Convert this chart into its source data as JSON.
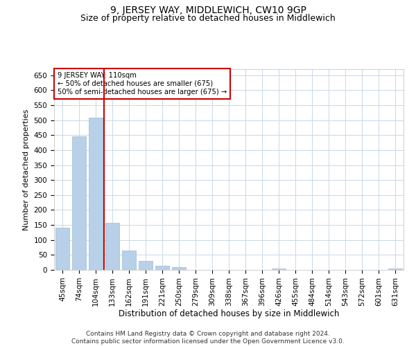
{
  "title": "9, JERSEY WAY, MIDDLEWICH, CW10 9GP",
  "subtitle": "Size of property relative to detached houses in Middlewich",
  "xlabel": "Distribution of detached houses by size in Middlewich",
  "ylabel": "Number of detached properties",
  "categories": [
    "45sqm",
    "74sqm",
    "104sqm",
    "133sqm",
    "162sqm",
    "191sqm",
    "221sqm",
    "250sqm",
    "279sqm",
    "309sqm",
    "338sqm",
    "367sqm",
    "396sqm",
    "426sqm",
    "455sqm",
    "484sqm",
    "514sqm",
    "543sqm",
    "572sqm",
    "601sqm",
    "631sqm"
  ],
  "values": [
    142,
    447,
    508,
    157,
    64,
    30,
    14,
    9,
    0,
    0,
    0,
    0,
    0,
    5,
    0,
    0,
    0,
    0,
    0,
    0,
    5
  ],
  "bar_color": "#b8d0e8",
  "bar_edge_color": "#9bbcd8",
  "vline_x": 2.5,
  "vline_color": "#cc0000",
  "annotation_text": "9 JERSEY WAY: 110sqm\n← 50% of detached houses are smaller (675)\n50% of semi-detached houses are larger (675) →",
  "annotation_box_color": "#ffffff",
  "annotation_box_edge_color": "#cc0000",
  "ylim": [
    0,
    670
  ],
  "yticks": [
    0,
    50,
    100,
    150,
    200,
    250,
    300,
    350,
    400,
    450,
    500,
    550,
    600,
    650
  ],
  "background_color": "#ffffff",
  "grid_color": "#c8d8e8",
  "footer_text": "Contains HM Land Registry data © Crown copyright and database right 2024.\nContains public sector information licensed under the Open Government Licence v3.0.",
  "title_fontsize": 10,
  "subtitle_fontsize": 9,
  "xlabel_fontsize": 8.5,
  "ylabel_fontsize": 8,
  "tick_fontsize": 7.5,
  "footer_fontsize": 6.5
}
